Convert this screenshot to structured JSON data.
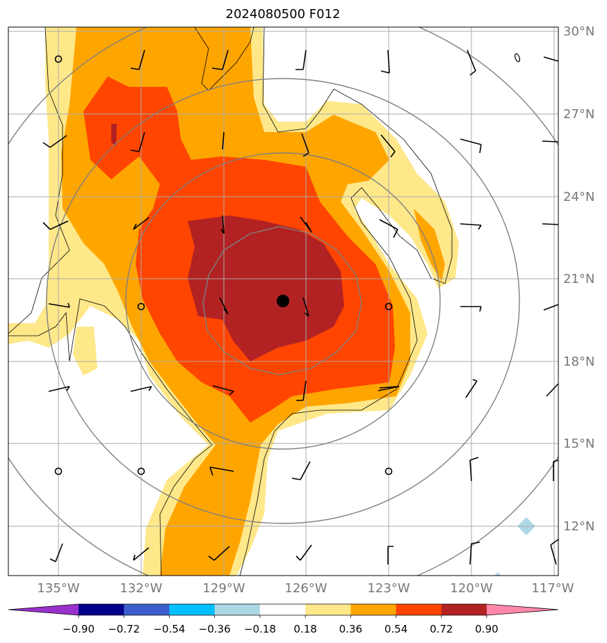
{
  "title": "2024080500 F012",
  "lat_labels": [
    "30°N",
    "27°N",
    "24°N",
    "21°N",
    "18°N",
    "15°N",
    "12°N"
  ],
  "lon_labels": [
    "135°W",
    "132°W",
    "129°W",
    "126°W",
    "123°W",
    "120°W",
    "117°W"
  ],
  "colorbar": {
    "labels": [
      "−0.90",
      "−0.72",
      "−0.54",
      "−0.36",
      "−0.18",
      "0.18",
      "0.36",
      "0.54",
      "0.72",
      "0.90"
    ],
    "colors": [
      "#9932cc",
      "#00008b",
      "#3a5fcd",
      "#00bfff",
      "#add8e6",
      "#ffffff",
      "#ffe88a",
      "#ffa500",
      "#ff4500",
      "#b22222",
      "#ff88aa"
    ]
  },
  "field_colors": {
    "level_1": "#ffe88a",
    "level_2": "#ffa500",
    "level_3": "#ff4500",
    "level_4": "#b22222",
    "negative": "#add8e6",
    "center_marker": "#000000",
    "range_rings": "#808080",
    "gridlines": "#aaaaaa"
  },
  "icons": [
    "storm-center-marker",
    "wind-barb",
    "calm-wind-circle"
  ]
}
